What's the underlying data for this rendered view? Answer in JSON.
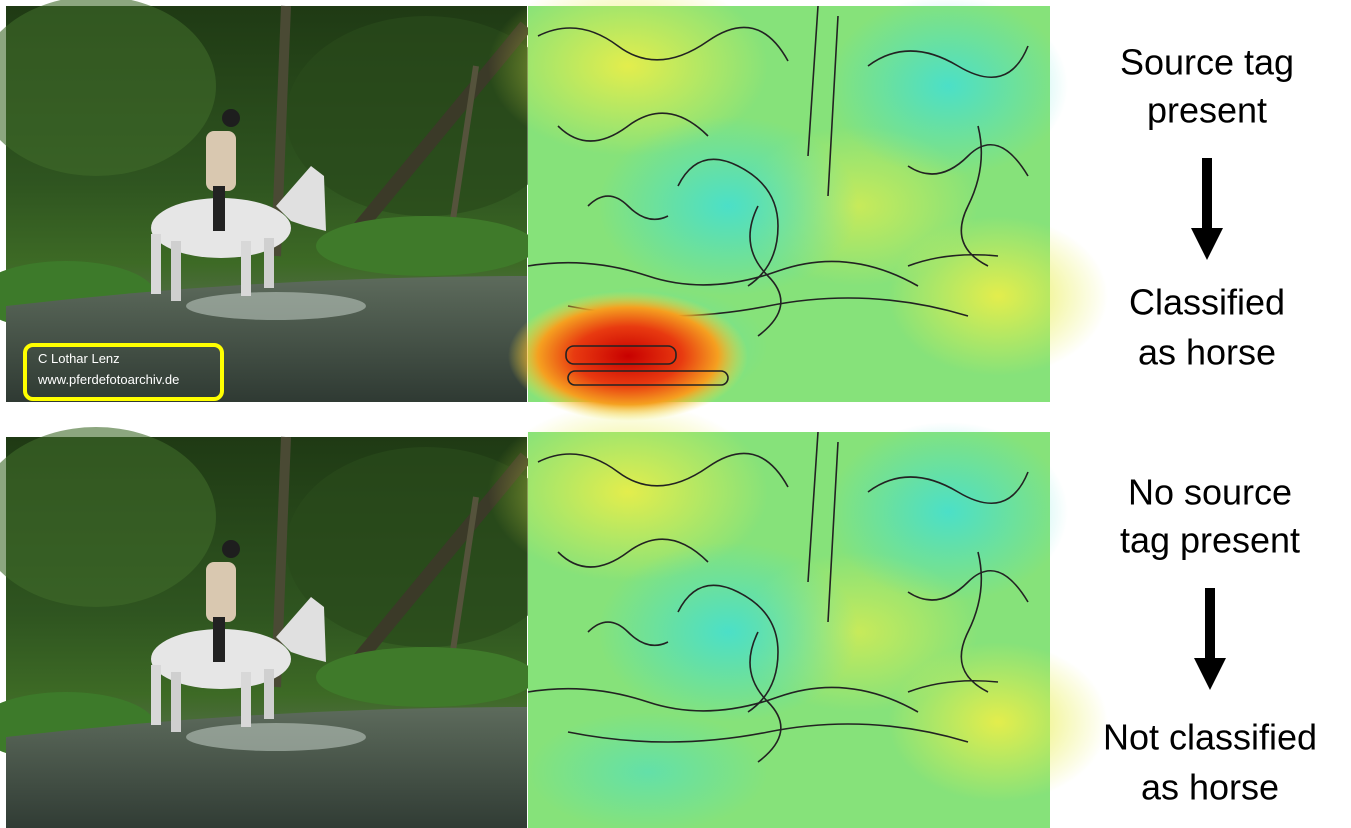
{
  "panels": [
    {
      "watermark": {
        "lines": [
          "C    Lothar Lenz",
          "www.pferdefotoarchiv.de"
        ]
      },
      "caption_top": [
        "Source tag",
        "present"
      ],
      "caption_bottom": [
        "Classified",
        "as horse"
      ]
    },
    {
      "caption_top": [
        "No source",
        "tag present"
      ],
      "caption_bottom": [
        "Not classified",
        "as horse"
      ]
    }
  ]
}
